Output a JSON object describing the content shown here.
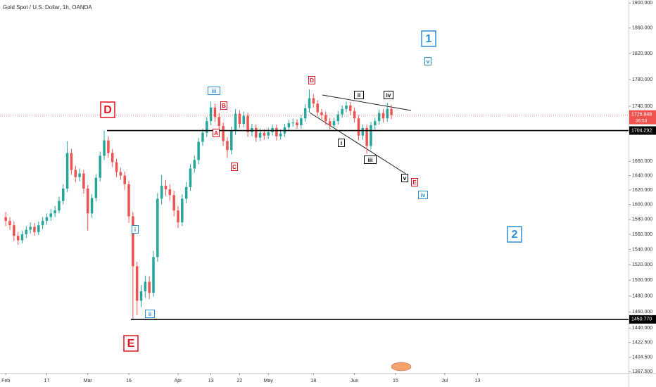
{
  "chart_data": {
    "type": "candlestick",
    "title": "Gold Spot / U.S. Dollar, 1h, OANDA",
    "log_scale": true,
    "grid": false,
    "up_color": "#26a69a",
    "down_color": "#ef5350",
    "ylim": [
      1386,
      1905
    ],
    "yticks": [
      {
        "value": 1900,
        "label": "1900.000"
      },
      {
        "value": 1860,
        "label": "1860.000"
      },
      {
        "value": 1820,
        "label": "1820.000"
      },
      {
        "value": 1780,
        "label": "1780.000"
      },
      {
        "value": 1740,
        "label": "1740.000"
      },
      {
        "value": 1660,
        "label": "1660.000"
      },
      {
        "value": 1640,
        "label": "1640.000"
      },
      {
        "value": 1620,
        "label": "1620.000"
      },
      {
        "value": 1600,
        "label": "1600.000"
      },
      {
        "value": 1580,
        "label": "1580.000"
      },
      {
        "value": 1560,
        "label": "1560.000"
      },
      {
        "value": 1540,
        "label": "1540.000"
      },
      {
        "value": 1520,
        "label": "1520.000"
      },
      {
        "value": 1500,
        "label": "1500.000"
      },
      {
        "value": 1480,
        "label": "1480.000"
      },
      {
        "value": 1460,
        "label": "1460.000"
      },
      {
        "value": 1440,
        "label": "1440.000"
      },
      {
        "value": 1422.5,
        "label": "1422.500"
      },
      {
        "value": 1404.5,
        "label": "1404.500"
      },
      {
        "value": 1387.5,
        "label": "1387.500"
      }
    ],
    "xlim": [
      -1.4,
      151.8
    ],
    "xticks": [
      {
        "value": 0,
        "label": "Feb"
      },
      {
        "value": 10,
        "label": "17"
      },
      {
        "value": 20,
        "label": "Mar"
      },
      {
        "value": 30,
        "label": "16"
      },
      {
        "value": 42,
        "label": "Apr"
      },
      {
        "value": 50,
        "label": "13"
      },
      {
        "value": 57,
        "label": "22"
      },
      {
        "value": 64,
        "label": "May"
      },
      {
        "value": 75,
        "label": "18"
      },
      {
        "value": 85,
        "label": "Jun"
      },
      {
        "value": 95,
        "label": "15"
      },
      {
        "value": 107,
        "label": "Jul"
      },
      {
        "value": 115,
        "label": "13"
      }
    ],
    "open": [
      1583,
      1578,
      1572,
      1558,
      1552,
      1560,
      1566,
      1570,
      1563,
      1572,
      1578,
      1583,
      1588,
      1592,
      1605,
      1622,
      1672,
      1648,
      1638,
      1643,
      1622,
      1588,
      1609,
      1637,
      1668,
      1690,
      1672,
      1659,
      1645,
      1640,
      1628,
      1584,
      1518,
      1474,
      1486,
      1498,
      1484,
      1530,
      1608,
      1626,
      1621,
      1613,
      1592,
      1576,
      1608,
      1624,
      1650,
      1662,
      1688,
      1701,
      1718,
      1738,
      1724,
      1711,
      1689,
      1676,
      1704,
      1729,
      1714,
      1726,
      1702,
      1708,
      1694,
      1701,
      1697,
      1702,
      1708,
      1696,
      1700,
      1709,
      1715,
      1716,
      1712,
      1722,
      1737,
      1752,
      1744,
      1731,
      1727,
      1718,
      1712,
      1718,
      1728,
      1736,
      1741,
      1733,
      1722,
      1697,
      1708,
      1682,
      1712,
      1718,
      1730,
      1722,
      1736
    ],
    "high": [
      1590,
      1583,
      1577,
      1563,
      1565,
      1571,
      1576,
      1575,
      1577,
      1583,
      1588,
      1594,
      1598,
      1611,
      1628,
      1689,
      1678,
      1654,
      1650,
      1648,
      1627,
      1614,
      1642,
      1674,
      1704,
      1696,
      1678,
      1664,
      1651,
      1646,
      1633,
      1590,
      1524,
      1494,
      1506,
      1505,
      1538,
      1616,
      1641,
      1634,
      1628,
      1619,
      1598,
      1614,
      1631,
      1656,
      1668,
      1694,
      1707,
      1724,
      1747,
      1744,
      1730,
      1716,
      1695,
      1710,
      1736,
      1734,
      1732,
      1731,
      1714,
      1713,
      1707,
      1706,
      1708,
      1713,
      1713,
      1706,
      1714,
      1720,
      1722,
      1721,
      1727,
      1743,
      1765,
      1758,
      1749,
      1736,
      1732,
      1723,
      1723,
      1733,
      1741,
      1747,
      1746,
      1738,
      1727,
      1713,
      1713,
      1717,
      1723,
      1735,
      1736,
      1745,
      1742
    ],
    "low": [
      1571,
      1566,
      1551,
      1546,
      1548,
      1555,
      1561,
      1558,
      1559,
      1567,
      1573,
      1578,
      1583,
      1588,
      1600,
      1617,
      1641,
      1631,
      1632,
      1615,
      1565,
      1582,
      1604,
      1632,
      1662,
      1665,
      1652,
      1638,
      1634,
      1620,
      1575,
      1451,
      1456,
      1466,
      1478,
      1476,
      1479,
      1524,
      1600,
      1612,
      1605,
      1584,
      1568,
      1571,
      1602,
      1619,
      1644,
      1656,
      1682,
      1695,
      1712,
      1717,
      1704,
      1682,
      1665,
      1670,
      1698,
      1708,
      1709,
      1695,
      1696,
      1688,
      1689,
      1691,
      1692,
      1697,
      1690,
      1691,
      1695,
      1704,
      1710,
      1707,
      1707,
      1717,
      1731,
      1738,
      1725,
      1721,
      1712,
      1706,
      1707,
      1713,
      1723,
      1731,
      1727,
      1716,
      1690,
      1691,
      1671,
      1677,
      1706,
      1713,
      1716,
      1717,
      1721
    ],
    "close": [
      1578,
      1572,
      1558,
      1552,
      1560,
      1566,
      1570,
      1563,
      1572,
      1578,
      1583,
      1588,
      1592,
      1605,
      1622,
      1672,
      1648,
      1638,
      1643,
      1622,
      1588,
      1609,
      1637,
      1668,
      1690,
      1672,
      1659,
      1645,
      1640,
      1628,
      1584,
      1518,
      1474,
      1486,
      1498,
      1484,
      1530,
      1608,
      1626,
      1621,
      1613,
      1592,
      1576,
      1608,
      1624,
      1650,
      1662,
      1688,
      1701,
      1718,
      1738,
      1724,
      1711,
      1689,
      1676,
      1704,
      1729,
      1714,
      1726,
      1702,
      1708,
      1694,
      1701,
      1697,
      1702,
      1708,
      1696,
      1700,
      1709,
      1715,
      1716,
      1712,
      1722,
      1737,
      1752,
      1744,
      1731,
      1727,
      1718,
      1712,
      1718,
      1728,
      1736,
      1741,
      1733,
      1722,
      1697,
      1708,
      1682,
      1712,
      1718,
      1730,
      1722,
      1736,
      1726.848
    ],
    "countdown": "36:53",
    "hlines": [
      {
        "value": 1704.292,
        "label": "1704.292"
      },
      {
        "value": 1450.77,
        "label": "1450.770"
      }
    ],
    "annotations": [
      {
        "text": "D",
        "color": "#e0141e"
      },
      {
        "text": "E",
        "color": "#e0141e"
      },
      {
        "text": "1",
        "color": "#2a8fd6"
      },
      {
        "text": "2",
        "color": "#2a8fd6"
      },
      {
        "text": "v",
        "color": "#2a8fd6"
      },
      {
        "text": "iii",
        "color": "#2a8fd6"
      },
      {
        "text": "B",
        "color": "#e0141e"
      },
      {
        "text": "A",
        "color": "#e0141e"
      },
      {
        "text": "C",
        "color": "#e0141e"
      },
      {
        "text": "D",
        "color": "#e0141e"
      },
      {
        "text": "i",
        "color": "#2a8fd6"
      },
      {
        "text": "ii",
        "color": "#2a8fd6"
      },
      {
        "text": "iv",
        "color": "#2a8fd6"
      },
      {
        "text": "E",
        "color": "#e0141e"
      },
      {
        "text": "ii",
        "color": "#000000"
      },
      {
        "text": "iv",
        "color": "#000000"
      },
      {
        "text": "i",
        "color": "#000000"
      },
      {
        "text": "iii",
        "color": "#000000"
      },
      {
        "text": "v",
        "color": "#000000"
      }
    ]
  }
}
